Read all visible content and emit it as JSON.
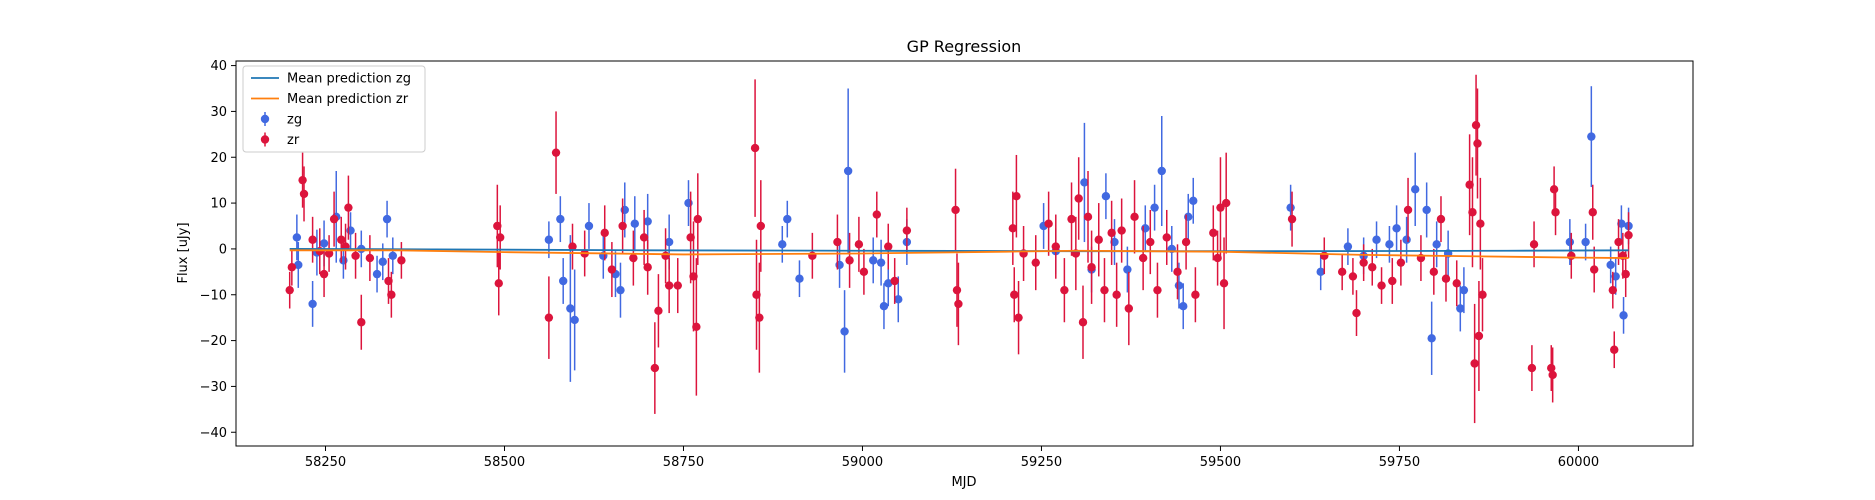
{
  "chart_data": {
    "type": "scatter",
    "title": "GP Regression",
    "xlabel": "MJD",
    "ylabel": "Flux [uJy]",
    "xlim": [
      58125,
      60160
    ],
    "ylim": [
      -43,
      41
    ],
    "xticks": [
      58250,
      58500,
      58750,
      59000,
      59250,
      59500,
      59750,
      60000
    ],
    "yticks": [
      -40,
      -30,
      -20,
      -10,
      0,
      10,
      20,
      30,
      40
    ],
    "grid": false,
    "legend_position": "top-left",
    "legend": [
      {
        "label": "Mean prediction zg",
        "kind": "line",
        "color": "#1f77b4"
      },
      {
        "label": "Mean prediction zr",
        "kind": "line",
        "color": "#ff7f0e"
      },
      {
        "label": "zg",
        "kind": "errorbar",
        "color": "#4169e1"
      },
      {
        "label": "zr",
        "kind": "errorbar",
        "color": "#dc143c"
      }
    ],
    "series": [
      {
        "name": "Mean prediction zg",
        "kind": "line",
        "color": "#1f77b4",
        "x": [
          58200,
          58400,
          58700,
          59000,
          59300,
          59600,
          59900,
          60070
        ],
        "y": [
          0.0,
          -0.1,
          -0.3,
          -0.4,
          -0.5,
          -0.5,
          -0.4,
          -0.3
        ]
      },
      {
        "name": "Mean prediction zr",
        "kind": "line",
        "color": "#ff7f0e",
        "x": [
          58200,
          58350,
          58500,
          58750,
          59000,
          59200,
          59300,
          59500,
          59700,
          59850,
          60000,
          60070
        ],
        "y": [
          -0.3,
          -0.3,
          -0.7,
          -1.2,
          -1.0,
          -0.6,
          -0.4,
          -0.6,
          -1.3,
          -1.6,
          -1.9,
          -2.0
        ]
      },
      {
        "name": "zg",
        "kind": "errorbar",
        "color": "#4169e1",
        "points": [
          [
            58210,
            2.5,
            5
          ],
          [
            58212,
            -3.5,
            5
          ],
          [
            58232,
            -12,
            5
          ],
          [
            58238,
            -0.8,
            5
          ],
          [
            58248,
            1.2,
            5
          ],
          [
            58265,
            7,
            10
          ],
          [
            58275,
            -2.5,
            4
          ],
          [
            58285,
            4,
            4
          ],
          [
            58300,
            0,
            4
          ],
          [
            58322,
            -5.5,
            4
          ],
          [
            58330,
            -2.8,
            4
          ],
          [
            58336,
            6.5,
            4
          ],
          [
            58344,
            -1.5,
            4
          ],
          [
            58562,
            2,
            4
          ],
          [
            58578,
            6.5,
            5
          ],
          [
            58582,
            -7,
            5
          ],
          [
            58592,
            -13,
            16
          ],
          [
            58598,
            -15.5,
            11
          ],
          [
            58618,
            5,
            5
          ],
          [
            58638,
            -1.5,
            5
          ],
          [
            58655,
            -5.5,
            5
          ],
          [
            58662,
            -9,
            6
          ],
          [
            58668,
            8.5,
            6
          ],
          [
            58682,
            5.5,
            6
          ],
          [
            58700,
            6,
            6
          ],
          [
            58730,
            1.5,
            6
          ],
          [
            58757,
            10,
            5
          ],
          [
            58888,
            1,
            4
          ],
          [
            58895,
            6.5,
            4
          ],
          [
            58912,
            -6.5,
            4
          ],
          [
            58968,
            -3.5,
            5
          ],
          [
            58975,
            -18,
            9
          ],
          [
            58980,
            17,
            18
          ],
          [
            59015,
            -2.5,
            5
          ],
          [
            59026,
            -3,
            5
          ],
          [
            59030,
            -12.5,
            5
          ],
          [
            59036,
            -7.5,
            5
          ],
          [
            59050,
            -11,
            5
          ],
          [
            59062,
            1.5,
            5
          ],
          [
            59253,
            5,
            5
          ],
          [
            59270,
            -0.5,
            5
          ],
          [
            59310,
            14.5,
            13
          ],
          [
            59320,
            -4.5,
            5
          ],
          [
            59340,
            11.5,
            5
          ],
          [
            59352,
            1.5,
            5
          ],
          [
            59370,
            -4.5,
            5
          ],
          [
            59395,
            4.5,
            5
          ],
          [
            59408,
            9,
            5
          ],
          [
            59418,
            17,
            12
          ],
          [
            59432,
            0,
            5
          ],
          [
            59442,
            -8,
            5
          ],
          [
            59448,
            -12.5,
            5
          ],
          [
            59455,
            7,
            5
          ],
          [
            59462,
            10.5,
            5
          ],
          [
            59598,
            9,
            5
          ],
          [
            59640,
            -5,
            4
          ],
          [
            59678,
            0.5,
            4
          ],
          [
            59700,
            -1.5,
            4
          ],
          [
            59718,
            2,
            4
          ],
          [
            59736,
            1,
            4
          ],
          [
            59746,
            4.5,
            5
          ],
          [
            59760,
            2,
            5
          ],
          [
            59772,
            13,
            8
          ],
          [
            59788,
            8.5,
            6
          ],
          [
            59795,
            -19.5,
            8
          ],
          [
            59802,
            1,
            5
          ],
          [
            59818,
            -1,
            5
          ],
          [
            59835,
            -13,
            5
          ],
          [
            59840,
            -9,
            5
          ],
          [
            59988,
            1.5,
            5
          ],
          [
            60010,
            1.5,
            4
          ],
          [
            60018,
            24.5,
            11
          ],
          [
            60045,
            -3.5,
            4
          ],
          [
            60052,
            -6,
            4
          ],
          [
            60060,
            5.5,
            4
          ],
          [
            60063,
            -14.5,
            4
          ],
          [
            60070,
            5,
            4
          ]
        ]
      },
      {
        "name": "zr",
        "kind": "errorbar",
        "color": "#dc143c",
        "points": [
          [
            58200,
            -9,
            4
          ],
          [
            58203,
            -4,
            4
          ],
          [
            58218,
            15,
            6
          ],
          [
            58220,
            12,
            6
          ],
          [
            58232,
            2,
            5
          ],
          [
            58242,
            -0.5,
            5
          ],
          [
            58248,
            -5.5,
            5
          ],
          [
            58255,
            -1,
            4
          ],
          [
            58262,
            6.5,
            6
          ],
          [
            58272,
            2,
            5
          ],
          [
            58278,
            0.5,
            5
          ],
          [
            58282,
            9,
            7
          ],
          [
            58292,
            -1.5,
            5
          ],
          [
            58300,
            -16,
            6
          ],
          [
            58312,
            -2,
            5
          ],
          [
            58338,
            -7,
            5
          ],
          [
            58342,
            -10,
            5
          ],
          [
            58356,
            -2.5,
            4
          ],
          [
            58490,
            5,
            9
          ],
          [
            58492,
            -7.5,
            7
          ],
          [
            58494,
            2.5,
            7
          ],
          [
            58562,
            -15,
            9
          ],
          [
            58572,
            21,
            9
          ],
          [
            58595,
            0.5,
            5
          ],
          [
            58612,
            -1,
            5
          ],
          [
            58640,
            3.5,
            6
          ],
          [
            58650,
            -4.5,
            6
          ],
          [
            58665,
            5,
            6
          ],
          [
            58680,
            -2,
            6
          ],
          [
            58695,
            2.5,
            6
          ],
          [
            58700,
            -4,
            6
          ],
          [
            58710,
            -26,
            10
          ],
          [
            58715,
            -13.5,
            8
          ],
          [
            58725,
            -1.5,
            6
          ],
          [
            58730,
            -8,
            6
          ],
          [
            58742,
            -8,
            6
          ],
          [
            58760,
            2.5,
            10
          ],
          [
            58764,
            -6,
            12
          ],
          [
            58768,
            -17,
            15
          ],
          [
            58770,
            6.5,
            10
          ],
          [
            58850,
            22,
            15
          ],
          [
            58852,
            -10,
            12
          ],
          [
            58856,
            -15,
            12
          ],
          [
            58858,
            5,
            10
          ],
          [
            58930,
            -1.5,
            5
          ],
          [
            58965,
            1.5,
            6
          ],
          [
            58982,
            -2.5,
            6
          ],
          [
            58995,
            1,
            6
          ],
          [
            59002,
            -5,
            5
          ],
          [
            59020,
            7.5,
            5
          ],
          [
            59036,
            0.5,
            5
          ],
          [
            59045,
            -7,
            5
          ],
          [
            59062,
            4,
            5
          ],
          [
            59130,
            8.5,
            9
          ],
          [
            59132,
            -9,
            8
          ],
          [
            59134,
            -12,
            9
          ],
          [
            59210,
            4.5,
            8
          ],
          [
            59212,
            -10,
            6
          ],
          [
            59215,
            11.5,
            9
          ],
          [
            59218,
            -15,
            8
          ],
          [
            59225,
            -1,
            6
          ],
          [
            59242,
            -3,
            6
          ],
          [
            59260,
            5.5,
            7
          ],
          [
            59270,
            0.5,
            7
          ],
          [
            59282,
            -9,
            7
          ],
          [
            59292,
            6.5,
            8
          ],
          [
            59298,
            -1,
            8
          ],
          [
            59302,
            11,
            9
          ],
          [
            59308,
            -16,
            8
          ],
          [
            59315,
            7,
            10
          ],
          [
            59320,
            -4,
            8
          ],
          [
            59330,
            2,
            8
          ],
          [
            59338,
            -9,
            7
          ],
          [
            59348,
            3.5,
            7
          ],
          [
            59355,
            -10,
            7
          ],
          [
            59362,
            4,
            7
          ],
          [
            59372,
            -13,
            8
          ],
          [
            59380,
            7,
            8
          ],
          [
            59392,
            -2,
            7
          ],
          [
            59402,
            1.5,
            7
          ],
          [
            59412,
            -9,
            6
          ],
          [
            59425,
            2.5,
            6
          ],
          [
            59440,
            -5,
            6
          ],
          [
            59452,
            1.5,
            6
          ],
          [
            59465,
            -10,
            6
          ],
          [
            59490,
            3.5,
            6
          ],
          [
            59496,
            -2,
            6
          ],
          [
            59500,
            9,
            11
          ],
          [
            59505,
            -7.5,
            10
          ],
          [
            59508,
            10,
            11
          ],
          [
            59600,
            6.5,
            6
          ],
          [
            59645,
            -1.5,
            4
          ],
          [
            59670,
            -5,
            4
          ],
          [
            59685,
            -6,
            4
          ],
          [
            59690,
            -14,
            5
          ],
          [
            59700,
            -3,
            4
          ],
          [
            59712,
            -4,
            4
          ],
          [
            59725,
            -8,
            4
          ],
          [
            59740,
            -7,
            5
          ],
          [
            59752,
            -3,
            5
          ],
          [
            59762,
            8.5,
            7
          ],
          [
            59780,
            -2,
            5
          ],
          [
            59798,
            -5,
            5
          ],
          [
            59808,
            6.5,
            5
          ],
          [
            59815,
            -6.5,
            5
          ],
          [
            59830,
            -7.5,
            5
          ],
          [
            59848,
            14,
            11
          ],
          [
            59852,
            8,
            12
          ],
          [
            59855,
            -25,
            13
          ],
          [
            59857,
            27,
            11
          ],
          [
            59859,
            23,
            12
          ],
          [
            59861,
            -19,
            12
          ],
          [
            59863,
            5.5,
            10
          ],
          [
            59866,
            -10,
            8
          ],
          [
            59935,
            -26,
            5
          ],
          [
            59938,
            1,
            5
          ],
          [
            59962,
            -26,
            5
          ],
          [
            59964,
            -27.5,
            6
          ],
          [
            59966,
            13,
            5
          ],
          [
            59968,
            8,
            5
          ],
          [
            59990,
            -1.5,
            5
          ],
          [
            60020,
            8,
            6
          ],
          [
            60022,
            -4.5,
            5
          ],
          [
            60048,
            -9,
            4
          ],
          [
            60050,
            -22,
            4
          ],
          [
            60056,
            1.5,
            5
          ],
          [
            60062,
            -1.5,
            5
          ],
          [
            60066,
            -5.5,
            5
          ],
          [
            60070,
            3,
            5
          ]
        ]
      }
    ]
  }
}
